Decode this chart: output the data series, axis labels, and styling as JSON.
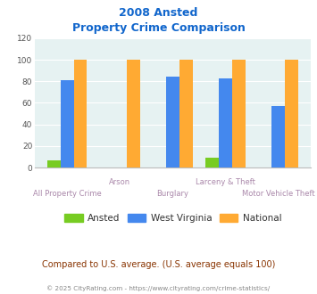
{
  "title_line1": "2008 Ansted",
  "title_line2": "Property Crime Comparison",
  "categories": [
    "All Property Crime",
    "Arson",
    "Burglary",
    "Larceny & Theft",
    "Motor Vehicle Theft"
  ],
  "ansted": [
    7,
    0,
    0,
    9,
    0
  ],
  "west_virginia": [
    81,
    0,
    84,
    83,
    57
  ],
  "national": [
    100,
    100,
    100,
    100,
    100
  ],
  "color_ansted": "#77cc22",
  "color_wv": "#4488ee",
  "color_nat": "#ffaa33",
  "ylim": [
    0,
    120
  ],
  "yticks": [
    0,
    20,
    40,
    60,
    80,
    100,
    120
  ],
  "bg_color": "#e6f2f2",
  "note": "Compared to U.S. average. (U.S. average equals 100)",
  "footer": "© 2025 CityRating.com - https://www.cityrating.com/crime-statistics/",
  "title_color": "#1166cc",
  "xlabel_color": "#aa88aa",
  "note_color": "#883300",
  "footer_color": "#888888"
}
